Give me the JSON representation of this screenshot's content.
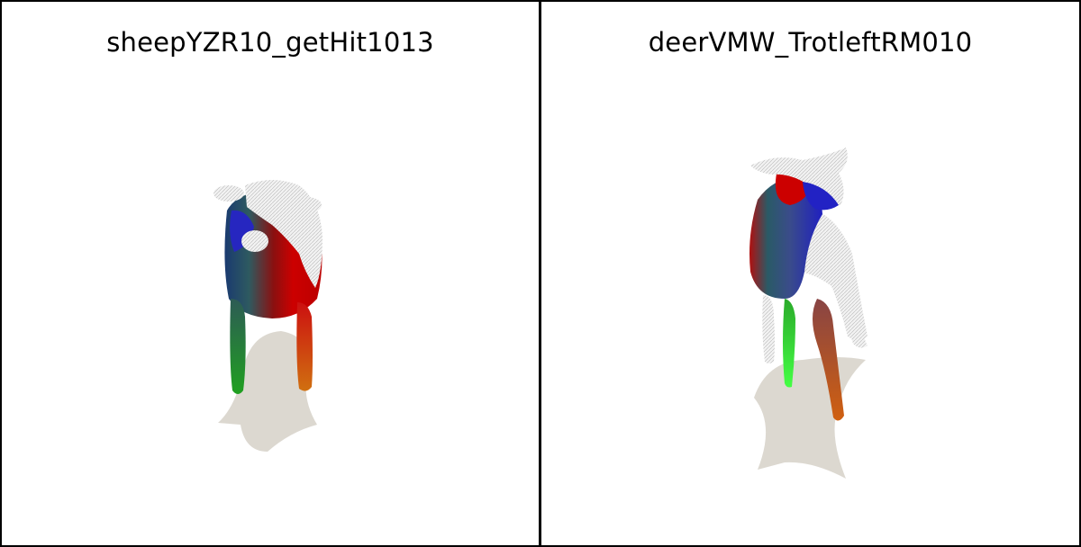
{
  "panels": [
    {
      "title": "sheepYZR10_getHit1013"
    },
    {
      "title": "deerVMW_TrotleftRM010"
    }
  ],
  "colors": {
    "frame": "#000000",
    "background": "#ffffff",
    "shadow": "#dcd8d0",
    "mesh_white": "#eeeeee",
    "red": "#cc0000",
    "blue": "#2020c0",
    "green": "#22cc22",
    "orange": "#d07010",
    "teal": "#2a6060"
  }
}
